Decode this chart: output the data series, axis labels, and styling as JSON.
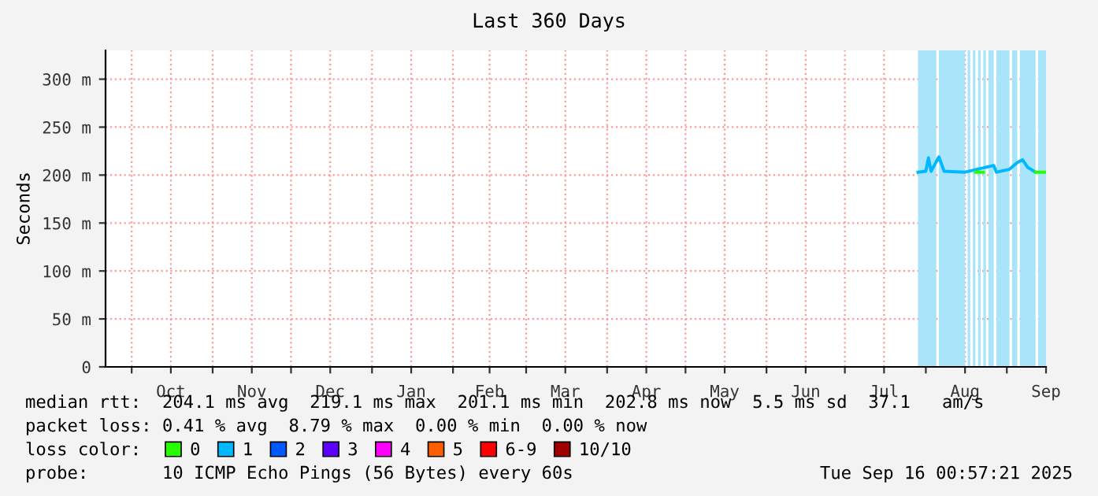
{
  "chart_data": {
    "type": "line",
    "title": "Last 360 Days",
    "ylabel": "Seconds",
    "xlim": [
      "2024-09-21",
      "2025-09-16"
    ],
    "xticks": [
      {
        "value": "2024-10-01",
        "label": null
      },
      {
        "value": "2024-10-16",
        "label": "Oct"
      },
      {
        "value": "2024-11-01",
        "label": null
      },
      {
        "value": "2024-11-16",
        "label": "Nov"
      },
      {
        "value": "2024-12-01",
        "label": null
      },
      {
        "value": "2024-12-16",
        "label": "Dec"
      },
      {
        "value": "2025-01-01",
        "label": null
      },
      {
        "value": "2025-01-16",
        "label": "Jan"
      },
      {
        "value": "2025-02-01",
        "label": null
      },
      {
        "value": "2025-02-15",
        "label": "Feb"
      },
      {
        "value": "2025-03-01",
        "label": null
      },
      {
        "value": "2025-03-16",
        "label": "Mar"
      },
      {
        "value": "2025-04-01",
        "label": null
      },
      {
        "value": "2025-04-16",
        "label": "Apr"
      },
      {
        "value": "2025-05-01",
        "label": null
      },
      {
        "value": "2025-05-16",
        "label": "May"
      },
      {
        "value": "2025-06-01",
        "label": null
      },
      {
        "value": "2025-06-16",
        "label": "Jun"
      },
      {
        "value": "2025-07-01",
        "label": null
      },
      {
        "value": "2025-07-16",
        "label": "Jul"
      },
      {
        "value": "2025-08-01",
        "label": null
      },
      {
        "value": "2025-08-16",
        "label": "Aug"
      },
      {
        "value": "2025-09-01",
        "label": null
      },
      {
        "value": "2025-09-16",
        "label": "Sep"
      }
    ],
    "ylim": [
      0,
      330
    ],
    "yticks": [
      0,
      {
        "value": 50,
        "label": "50 m"
      },
      {
        "value": 100,
        "label": "100 m"
      },
      {
        "value": 150,
        "label": "150 m"
      },
      {
        "value": 200,
        "label": "200 m"
      },
      {
        "value": 250,
        "label": "250 m"
      },
      {
        "value": 300,
        "label": "300 m"
      }
    ],
    "grid": true,
    "legend": "bottom",
    "line_style": "solid",
    "marker": "none",
    "bands": [
      {
        "axis": "x",
        "from": "2025-07-29",
        "to": "2025-08-05",
        "color": "#a8e4fa"
      },
      {
        "axis": "x",
        "from": "2025-08-06",
        "to": "2025-08-16",
        "color": "#a8e4fa"
      },
      {
        "axis": "x",
        "from": "2025-08-17",
        "to": "2025-08-18",
        "color": "#a8e4fa"
      },
      {
        "axis": "x",
        "from": "2025-08-19",
        "to": "2025-08-20",
        "color": "#a8e4fa"
      },
      {
        "axis": "x",
        "from": "2025-08-21",
        "to": "2025-08-22",
        "color": "#a8e4fa"
      },
      {
        "axis": "x",
        "from": "2025-08-23",
        "to": "2025-08-24",
        "color": "#a8e4fa"
      },
      {
        "axis": "x",
        "from": "2025-08-25",
        "to": "2025-08-27",
        "color": "#a8e4fa"
      },
      {
        "axis": "x",
        "from": "2025-08-28",
        "to": "2025-09-02",
        "color": "#a8e4fa"
      },
      {
        "axis": "x",
        "from": "2025-09-03",
        "to": "2025-09-05",
        "color": "#a8e4fa"
      },
      {
        "axis": "x",
        "from": "2025-09-06",
        "to": "2025-09-12",
        "color": "#a8e4fa"
      },
      {
        "axis": "x",
        "from": "2025-09-13",
        "to": "2025-09-16",
        "color": "#a8e4fa"
      }
    ],
    "series": [
      {
        "name": "0",
        "color": "#26ff00",
        "x": [
          "2025-08-20",
          "2025-08-23",
          "2025-08-26",
          "2025-09-12",
          "2025-09-16"
        ],
        "values": [
          203,
          203,
          null,
          203,
          203
        ]
      },
      {
        "name": "1",
        "color": "#00b8ff",
        "x": [
          "2025-07-29",
          "2025-08-01",
          "2025-08-02",
          "2025-08-03",
          "2025-08-06",
          "2025-08-08",
          "2025-08-16",
          "2025-08-27",
          "2025-08-28",
          "2025-09-02",
          "2025-09-05",
          "2025-09-07",
          "2025-09-09",
          "2025-09-12"
        ],
        "values": [
          203,
          204,
          218,
          204,
          219,
          204,
          203,
          210,
          203,
          206,
          213,
          216,
          208,
          203
        ]
      },
      {
        "name": "2",
        "color": "#0059ff"
      },
      {
        "name": "3",
        "color": "#5e00ff"
      },
      {
        "name": "4",
        "color": "#ff00ff"
      },
      {
        "name": "5",
        "color": "#ff5e00"
      },
      {
        "name": "6-9",
        "color": "#ff0000"
      },
      {
        "name": "10/10",
        "color": "#a10000"
      }
    ],
    "annotations": [
      "median rtt:  204.1 ms avg  219.1 ms max  201.1 ms min  202.8 ms now  5.5 ms sd  37.1   am/s",
      "packet loss: 0.41 % avg  8.79 % max  0.00 % min  0.00 % now",
      "loss color:",
      "probe:       10 ICMP Echo Pings (56 Bytes) every 60s",
      "Tue Sep 16 00:57:21 2025"
    ]
  }
}
